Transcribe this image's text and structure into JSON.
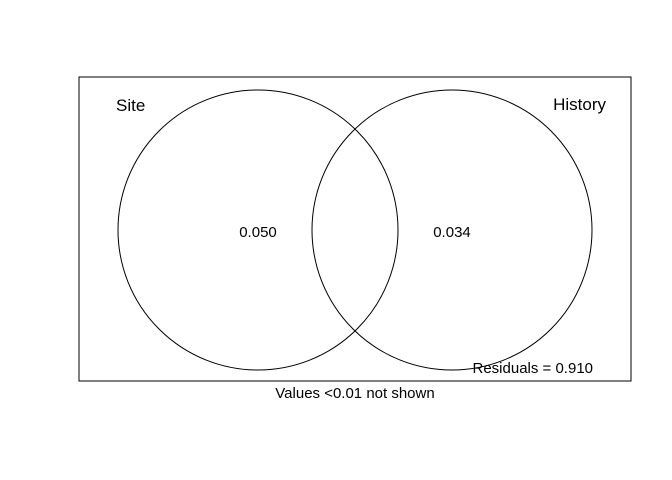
{
  "diagram": {
    "sets": [
      {
        "label": "Site",
        "value": "0.050"
      },
      {
        "label": "History",
        "value": "0.034"
      }
    ],
    "residuals_text": "Residuals = 0.910",
    "footnote": "Values <0.01 not shown",
    "colors": {
      "stroke": "#000000",
      "background": "#ffffff",
      "text": "#000000"
    }
  }
}
